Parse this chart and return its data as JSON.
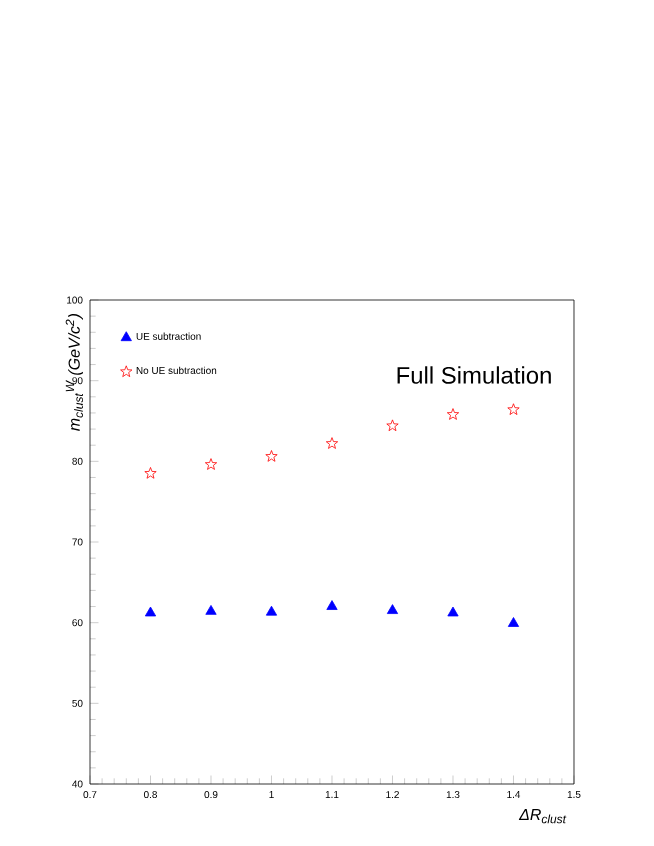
{
  "chart_data": {
    "type": "scatter",
    "xlabel": "ΔR$_{clust}$",
    "ylabel": "m$_{clust}$$^{W}$ (GeV/c$^{2}$)",
    "x": [
      0.8,
      0.9,
      1.0,
      1.1,
      1.2,
      1.3,
      1.4
    ],
    "series": [
      {
        "name": "UE subtraction",
        "color": "#0000ff",
        "marker": "triangle",
        "values": [
          61.2,
          61.4,
          61.3,
          62.0,
          61.5,
          61.2,
          59.9
        ]
      },
      {
        "name": "No UE subtraction",
        "color": "#ff0000",
        "marker": "star",
        "values": [
          78.5,
          79.6,
          80.6,
          82.2,
          84.4,
          85.8,
          86.4
        ]
      }
    ],
    "annotations": [
      "Full Simulation"
    ],
    "xlim": [
      0.7,
      1.5
    ],
    "ylim": [
      40,
      100
    ],
    "xticks": [
      0.7,
      0.8,
      0.9,
      1,
      1.1,
      1.2,
      1.3,
      1.4,
      1.5
    ],
    "yticks": [
      40,
      50,
      60,
      70,
      80,
      90,
      100
    ],
    "legend": "top left",
    "grid": false
  }
}
